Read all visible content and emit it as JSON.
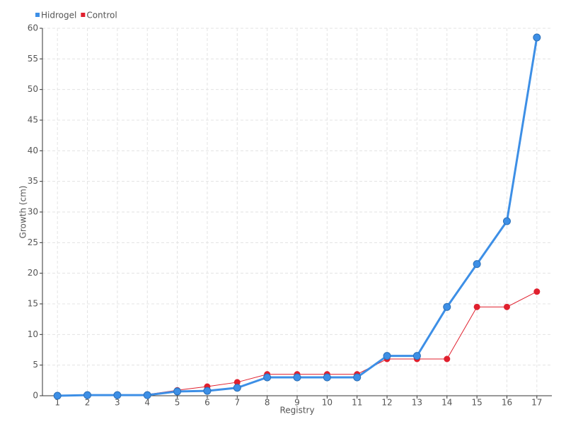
{
  "chart_data": {
    "type": "line",
    "x_label": "Registry",
    "y_label": "Growth (cm)",
    "categories": [
      "1",
      "2",
      "3",
      "4",
      "5",
      "6",
      "7",
      "8",
      "9",
      "10",
      "11",
      "12",
      "13",
      "14",
      "15",
      "16",
      "17"
    ],
    "series": [
      {
        "name": "Hidrogel",
        "color": "#3d8fe6",
        "values": [
          0,
          0.1,
          0.1,
          0.1,
          0.7,
          0.8,
          1.3,
          3,
          3,
          3,
          3,
          6.5,
          6.5,
          14.5,
          21.5,
          28.5,
          58.5
        ]
      },
      {
        "name": "Control",
        "color": "#e0202e",
        "values": [
          0,
          0,
          0.1,
          0.2,
          0.9,
          1.5,
          2.2,
          3.5,
          3.5,
          3.5,
          3.5,
          6,
          6,
          6,
          14.5,
          14.5,
          17
        ]
      }
    ],
    "ylim": [
      0,
      60
    ],
    "yticks": [
      0,
      5,
      10,
      15,
      20,
      25,
      30,
      35,
      40,
      45,
      50,
      55,
      60
    ],
    "grid": true
  }
}
